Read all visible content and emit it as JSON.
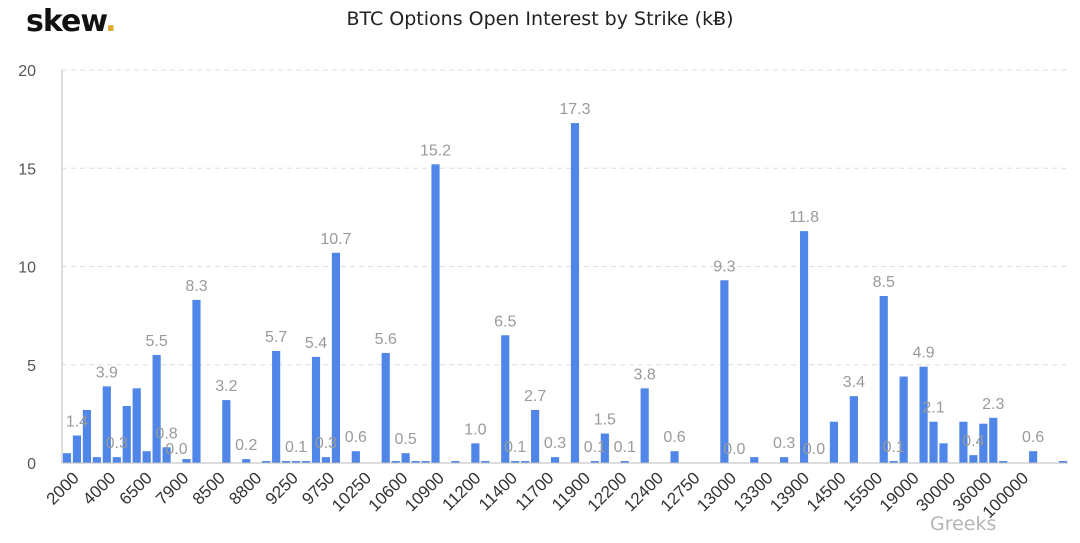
{
  "logo": {
    "text": "skew",
    "dot": "."
  },
  "watermark": "Greeks",
  "colors": {
    "bar": "#4f86e8",
    "grid": "#dddddd",
    "axis": "#bbbbbb"
  },
  "chart_data": {
    "type": "bar",
    "title": "BTC Options Open Interest by Strike (kɃ)",
    "xlabel": "",
    "ylabel": "",
    "ylim": [
      0,
      20
    ],
    "yticks": [
      0,
      5,
      10,
      15,
      20
    ],
    "grid": true,
    "tick_labels": [
      "2000",
      "4000",
      "6500",
      "7900",
      "8500",
      "8800",
      "9250",
      "9750",
      "10250",
      "10600",
      "10900",
      "11200",
      "11400",
      "11700",
      "11900",
      "12200",
      "12400",
      "12750",
      "13000",
      "13300",
      "13900",
      "14500",
      "15500",
      "19000",
      "30000",
      "36000",
      "100000"
    ],
    "values": [
      0.5,
      1.4,
      2.7,
      0.3,
      3.9,
      0.3,
      2.9,
      3.8,
      0.6,
      5.5,
      0.8,
      0.0,
      0.2,
      8.3,
      0.0,
      0.0,
      3.2,
      0.0,
      0.2,
      0.0,
      0.1,
      5.7,
      0.1,
      0.1,
      0.1,
      5.4,
      0.3,
      10.7,
      0.0,
      0.6,
      0.0,
      0.0,
      5.6,
      0.1,
      0.5,
      0.1,
      0.1,
      15.2,
      0.0,
      0.1,
      0.0,
      1.0,
      0.1,
      0.0,
      6.5,
      0.1,
      0.1,
      2.7,
      0.0,
      0.3,
      0.0,
      17.3,
      0.0,
      0.1,
      1.5,
      0.0,
      0.1,
      0.0,
      3.8,
      0.0,
      0.0,
      0.6,
      0.0,
      0.0,
      0.0,
      0.0,
      9.3,
      0.0,
      0.0,
      0.3,
      0.0,
      0.0,
      0.3,
      0.0,
      11.8,
      0.0,
      0.0,
      2.1,
      0.0,
      3.4,
      0.0,
      0.0,
      8.5,
      0.1,
      4.4,
      0.0,
      4.9,
      2.1,
      1.0,
      0.0,
      2.1,
      0.4,
      2.0,
      2.3,
      0.1,
      0.0,
      0.0,
      0.6,
      0.0,
      0.0,
      0.1
    ],
    "data_labels": [
      {
        "index": 1,
        "text": "1.4"
      },
      {
        "index": 4,
        "text": "3.9"
      },
      {
        "index": 5,
        "text": "0.3"
      },
      {
        "index": 9,
        "text": "5.5"
      },
      {
        "index": 10,
        "text": "0.8"
      },
      {
        "index": 11,
        "text": "0.0"
      },
      {
        "index": 13,
        "text": "8.3"
      },
      {
        "index": 16,
        "text": "3.2"
      },
      {
        "index": 18,
        "text": "0.2"
      },
      {
        "index": 21,
        "text": "5.7"
      },
      {
        "index": 23,
        "text": "0.1"
      },
      {
        "index": 25,
        "text": "5.4"
      },
      {
        "index": 26,
        "text": "0.3"
      },
      {
        "index": 27,
        "text": "10.7"
      },
      {
        "index": 29,
        "text": "0.6"
      },
      {
        "index": 32,
        "text": "5.6"
      },
      {
        "index": 34,
        "text": "0.5"
      },
      {
        "index": 37,
        "text": "15.2"
      },
      {
        "index": 41,
        "text": "1.0"
      },
      {
        "index": 44,
        "text": "6.5"
      },
      {
        "index": 45,
        "text": "0.1"
      },
      {
        "index": 47,
        "text": "2.7"
      },
      {
        "index": 49,
        "text": "0.3"
      },
      {
        "index": 51,
        "text": "17.3"
      },
      {
        "index": 53,
        "text": "0.1"
      },
      {
        "index": 54,
        "text": "1.5"
      },
      {
        "index": 56,
        "text": "0.1"
      },
      {
        "index": 58,
        "text": "3.8"
      },
      {
        "index": 61,
        "text": "0.6"
      },
      {
        "index": 66,
        "text": "9.3"
      },
      {
        "index": 67,
        "text": "0.0"
      },
      {
        "index": 72,
        "text": "0.3"
      },
      {
        "index": 74,
        "text": "11.8"
      },
      {
        "index": 75,
        "text": "0.0"
      },
      {
        "index": 79,
        "text": "3.4"
      },
      {
        "index": 82,
        "text": "8.5"
      },
      {
        "index": 83,
        "text": "0.1"
      },
      {
        "index": 86,
        "text": "4.9"
      },
      {
        "index": 87,
        "text": "2.1"
      },
      {
        "index": 91,
        "text": "0.4"
      },
      {
        "index": 93,
        "text": "2.3"
      },
      {
        "index": 97,
        "text": "0.6"
      }
    ]
  }
}
